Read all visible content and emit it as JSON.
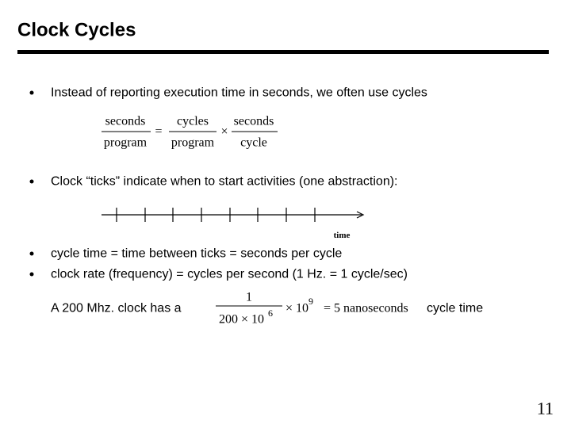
{
  "title": "Clock Cycles",
  "bullets": [
    "Instead of reporting execution time in seconds, we often use cycles",
    "Clock “ticks” indicate when to start activities (one abstraction):",
    "cycle time = time between ticks = seconds per cycle",
    "clock rate (frequency) = cycles per second  (1 Hz. = 1 cycle/sec)"
  ],
  "formula": {
    "lhs_num": "seconds",
    "lhs_den": "program",
    "eq": "=",
    "f1_num": "cycles",
    "f1_den": "program",
    "times": "×",
    "f2_num": "seconds",
    "f2_den": "cycle"
  },
  "timeline": {
    "label": "time"
  },
  "example": {
    "prefix": "A 200 Mhz. clock has a",
    "num": "1",
    "den_base": "200 × 10",
    "den_exp": "6",
    "times": "× 10",
    "exp": "9",
    "result": "= 5 nanoseconds",
    "suffix": "cycle time"
  },
  "page_number": "11"
}
